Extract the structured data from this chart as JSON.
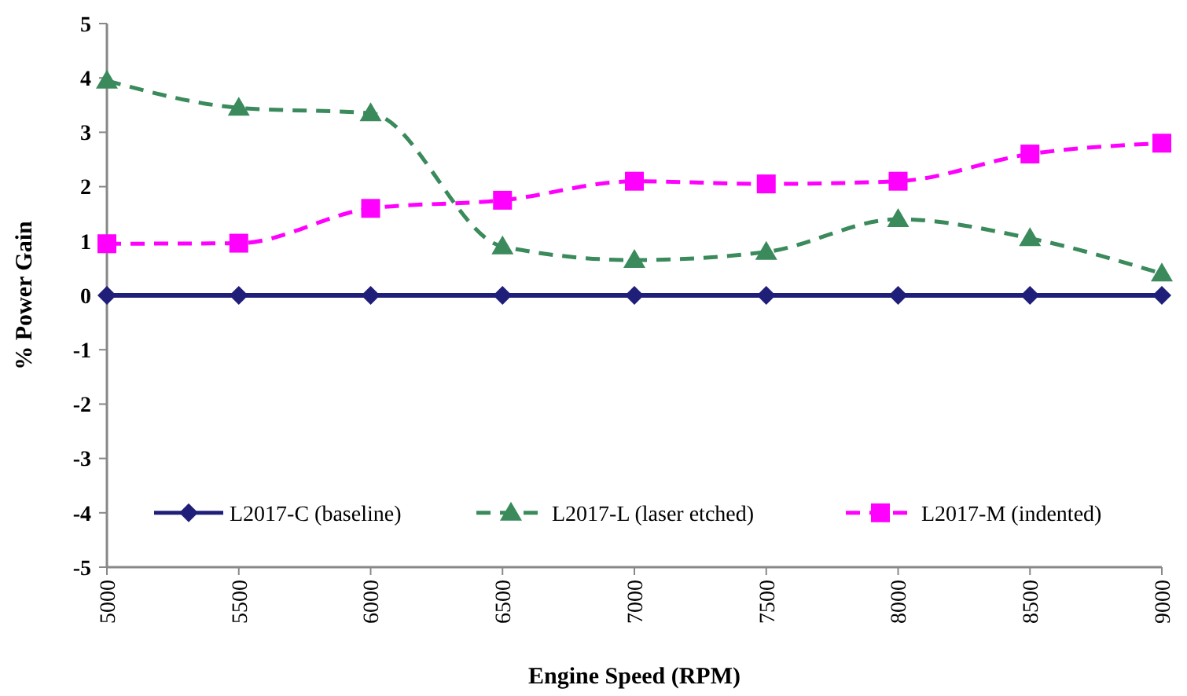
{
  "chart_data": {
    "type": "line",
    "xlabel": "Engine Speed (RPM)",
    "ylabel": "% Power Gain",
    "x": [
      5000,
      5500,
      6000,
      6500,
      7000,
      7500,
      8000,
      8500,
      9000
    ],
    "xlim": [
      5000,
      9000
    ],
    "xticks": [
      5000,
      5500,
      6000,
      6500,
      7000,
      7500,
      8000,
      8500,
      9000
    ],
    "ylim": [
      -5,
      5
    ],
    "yticks": [
      -5,
      -4,
      -3,
      -2,
      -1,
      0,
      1,
      2,
      3,
      4,
      5
    ],
    "legend": "bottom",
    "grid": false,
    "series": [
      {
        "name": "L2017-C (baseline)",
        "color": "#1f1f7a",
        "marker": "diamond",
        "line_style": "solid",
        "values": [
          0,
          0,
          0,
          0,
          0,
          0,
          0,
          0,
          0
        ]
      },
      {
        "name": "L2017-L (laser etched)",
        "color": "#3a8a5c",
        "marker": "triangle",
        "line_style": "dashed",
        "values": [
          3.95,
          3.45,
          3.35,
          0.9,
          0.65,
          0.8,
          1.4,
          1.05,
          0.4
        ]
      },
      {
        "name": "L2017-M (indented)",
        "color": "#ff00ff",
        "marker": "square",
        "line_style": "dashed",
        "values": [
          0.95,
          0.96,
          1.6,
          1.75,
          2.1,
          2.05,
          2.1,
          2.6,
          2.8
        ]
      }
    ]
  }
}
